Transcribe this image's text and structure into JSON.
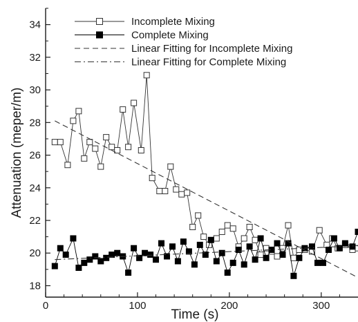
{
  "chart_data": {
    "type": "line",
    "title": "",
    "xlabel": "Time (s)",
    "ylabel": "Attenuation (meper/m)",
    "xlim": [
      0,
      340
    ],
    "ylim": [
      17.3,
      35
    ],
    "x_ticks": [
      0,
      100,
      200,
      300
    ],
    "y_ticks": [
      18,
      20,
      22,
      24,
      26,
      28,
      30,
      32,
      34
    ],
    "grid": false,
    "legend_position": "top-left",
    "series": [
      {
        "name": "Incomplete Mixing",
        "marker": "open-square",
        "line": "solid",
        "color": "#333333",
        "x": [
          10,
          16,
          24,
          30,
          36,
          42,
          48,
          54,
          60,
          66,
          72,
          78,
          84,
          90,
          96,
          104,
          110,
          116,
          124,
          130,
          136,
          142,
          148,
          154,
          160,
          166,
          172,
          178,
          186,
          192,
          198,
          204,
          210,
          216,
          222,
          228,
          234,
          240,
          246,
          252,
          258,
          264,
          270,
          276,
          282,
          290,
          298,
          306,
          312,
          318,
          326,
          334,
          340
        ],
        "y": [
          26.8,
          26.8,
          25.4,
          28.1,
          28.7,
          25.8,
          26.8,
          26.4,
          25.3,
          27.1,
          26.5,
          26.3,
          28.8,
          26.5,
          29.2,
          26.3,
          30.9,
          24.6,
          23.8,
          23.8,
          25.3,
          23.9,
          23.6,
          23.7,
          21.6,
          22.3,
          21.0,
          20.5,
          20.9,
          21.3,
          21.7,
          21.5,
          20.4,
          20.9,
          21.6,
          20.8,
          19.9,
          20.3,
          20.1,
          19.8,
          20.3,
          21.7,
          19.7,
          20.2,
          20.2,
          20.1,
          21.4,
          20.5,
          20.9,
          20.3,
          20.5,
          20.2,
          20.3
        ]
      },
      {
        "name": "Complete Mixing",
        "marker": "filled-square",
        "line": "solid",
        "color": "#000000",
        "x": [
          10,
          16,
          22,
          30,
          36,
          42,
          48,
          54,
          60,
          66,
          72,
          78,
          84,
          90,
          96,
          102,
          108,
          114,
          120,
          126,
          132,
          138,
          144,
          150,
          156,
          162,
          168,
          174,
          180,
          186,
          192,
          198,
          204,
          210,
          216,
          222,
          228,
          234,
          240,
          246,
          252,
          258,
          264,
          270,
          276,
          282,
          290,
          296,
          302,
          308,
          314,
          320,
          326,
          334,
          340
        ],
        "y": [
          19.2,
          20.3,
          19.9,
          20.9,
          19.1,
          19.4,
          19.6,
          19.8,
          19.5,
          19.7,
          19.9,
          20.0,
          19.8,
          18.8,
          20.3,
          19.7,
          20.0,
          19.9,
          19.6,
          20.6,
          19.8,
          20.4,
          19.5,
          20.7,
          20.1,
          19.3,
          20.5,
          19.9,
          20.8,
          19.5,
          20.0,
          18.8,
          19.4,
          20.2,
          19.3,
          20.4,
          19.6,
          20.9,
          19.7,
          20.2,
          20.6,
          19.9,
          20.6,
          18.6,
          19.7,
          20.3,
          20.4,
          19.4,
          19.4,
          20.2,
          20.9,
          20.3,
          20.6,
          20.4,
          21.3
        ]
      },
      {
        "name": "Linear Fitting for Incomplete Mixing",
        "marker": "none",
        "line": "dashed",
        "color": "#333333",
        "x": [
          10,
          340
        ],
        "y": [
          28.1,
          18.5
        ]
      },
      {
        "name": "Linear Fitting for Complete Mixing",
        "marker": "none",
        "line": "dash-dot",
        "color": "#333333",
        "x": [
          10,
          340
        ],
        "y": [
          19.6,
          20.45
        ]
      }
    ]
  }
}
